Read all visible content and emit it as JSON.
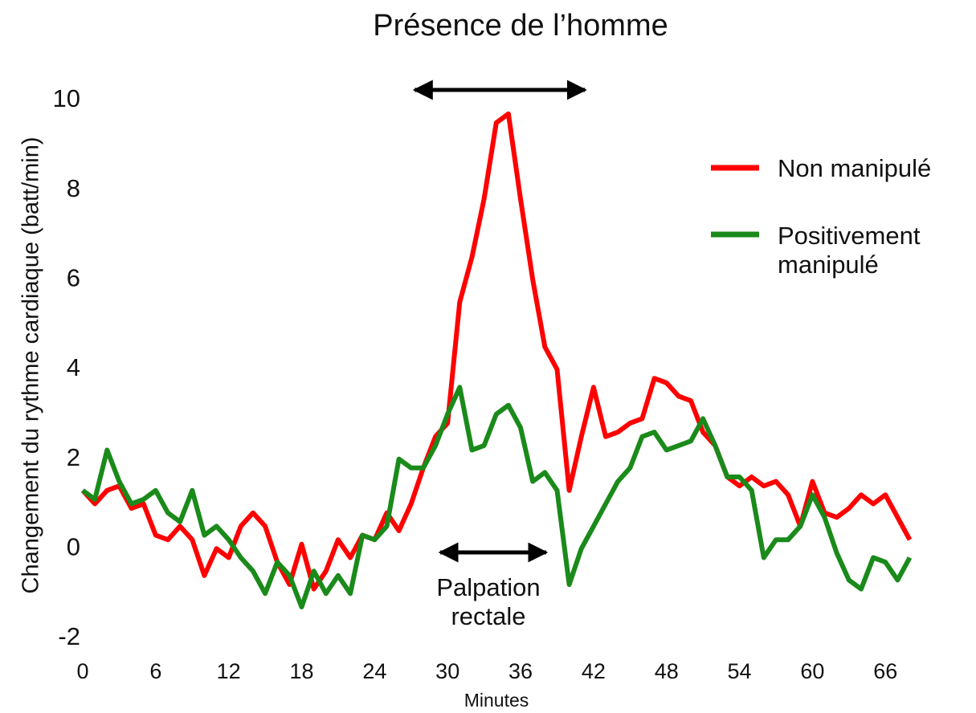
{
  "chart_data": {
    "type": "line",
    "title": "Présence de l’homme",
    "xlabel": "Minutes",
    "ylabel": "Changement du rythme cardiaque (batt/min)",
    "x": [
      0,
      1,
      2,
      3,
      4,
      5,
      6,
      7,
      8,
      9,
      10,
      11,
      12,
      13,
      14,
      15,
      16,
      17,
      18,
      19,
      20,
      21,
      22,
      23,
      24,
      25,
      26,
      27,
      28,
      29,
      30,
      31,
      32,
      33,
      34,
      35,
      36,
      37,
      38,
      39,
      40,
      41,
      42,
      43,
      44,
      45,
      46,
      47,
      48,
      49,
      50,
      51,
      52,
      53,
      54,
      55,
      56,
      57,
      58,
      59,
      60,
      61,
      62,
      63,
      64,
      65,
      66,
      67,
      68
    ],
    "series": [
      {
        "name": "Non manipulé",
        "color": "#ff0000",
        "values": [
          1.3,
          1.0,
          1.3,
          1.4,
          0.9,
          1.0,
          0.3,
          0.2,
          0.5,
          0.2,
          -0.6,
          0.0,
          -0.2,
          0.5,
          0.8,
          0.5,
          -0.3,
          -0.8,
          0.1,
          -0.9,
          -0.5,
          0.2,
          -0.2,
          0.3,
          0.2,
          0.8,
          0.4,
          1.0,
          1.8,
          2.5,
          2.8,
          5.5,
          6.5,
          7.8,
          9.5,
          9.7,
          7.8,
          6.0,
          4.5,
          4.0,
          1.3,
          2.5,
          3.6,
          2.5,
          2.6,
          2.8,
          2.9,
          3.8,
          3.7,
          3.4,
          3.3,
          2.6,
          2.3,
          1.6,
          1.4,
          1.6,
          1.4,
          1.5,
          1.2,
          0.5,
          1.5,
          0.8,
          0.7,
          0.9,
          1.2,
          1.0,
          1.2,
          0.7,
          0.2
        ]
      },
      {
        "name": "Positivement manipulé",
        "color": "#1a8a1a",
        "values": [
          1.3,
          1.1,
          2.2,
          1.5,
          1.0,
          1.1,
          1.3,
          0.8,
          0.6,
          1.3,
          0.3,
          0.5,
          0.2,
          -0.2,
          -0.5,
          -1.0,
          -0.3,
          -0.6,
          -1.3,
          -0.5,
          -1.0,
          -0.6,
          -1.0,
          0.3,
          0.2,
          0.5,
          2.0,
          1.8,
          1.8,
          2.3,
          3.0,
          3.6,
          2.2,
          2.3,
          3.0,
          3.2,
          2.7,
          1.5,
          1.7,
          1.3,
          -0.8,
          0.0,
          0.5,
          1.0,
          1.5,
          1.8,
          2.5,
          2.6,
          2.2,
          2.3,
          2.4,
          2.9,
          2.3,
          1.6,
          1.6,
          1.3,
          -0.2,
          0.2,
          0.2,
          0.5,
          1.2,
          0.7,
          -0.1,
          -0.7,
          -0.9,
          -0.2,
          -0.3,
          -0.7,
          -0.2
        ]
      }
    ],
    "xlim": [
      0,
      70
    ],
    "xticks": [
      0,
      6,
      12,
      18,
      24,
      30,
      36,
      42,
      48,
      54,
      60,
      66
    ],
    "ylim": [
      -2,
      10
    ],
    "yticks": [
      -2,
      0,
      2,
      4,
      6,
      8,
      10
    ],
    "grid": false,
    "legend": "upper right",
    "annotations": [
      {
        "text": "Palpation rectale",
        "span": [
          29.4,
          38.1
        ]
      }
    ],
    "title_span": [
      27.3,
      41.3
    ]
  }
}
